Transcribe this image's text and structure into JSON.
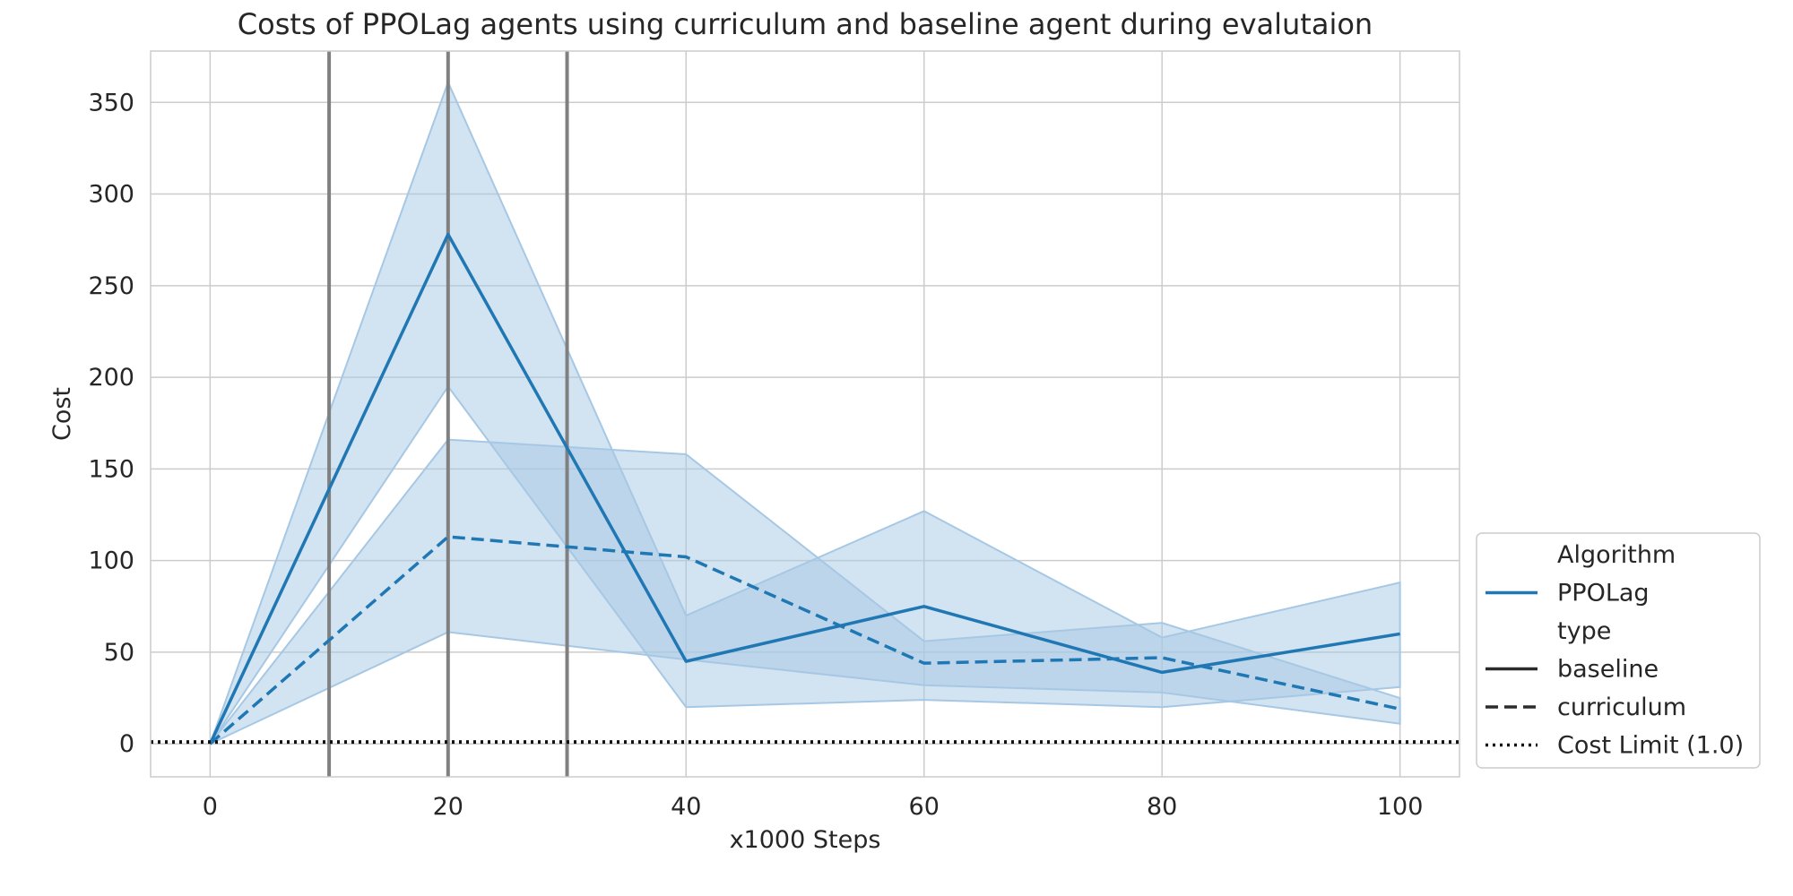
{
  "chart_data": {
    "type": "line",
    "title": "Costs of PPOLag agents using curriculum and baseline agent during evalutaion",
    "xlabel": "x1000 Steps",
    "ylabel": "Cost",
    "xlim": [
      -5,
      105
    ],
    "ylim": [
      -18,
      378
    ],
    "xticks": [
      0,
      20,
      40,
      60,
      80,
      100
    ],
    "yticks": [
      0,
      50,
      100,
      150,
      200,
      250,
      300,
      350
    ],
    "grid": true,
    "color": "#1f77b4",
    "band_color": "#a6c8e4",
    "x": [
      0,
      20,
      40,
      60,
      80,
      100
    ],
    "series": [
      {
        "name": "baseline",
        "style": "solid",
        "values": [
          0,
          278,
          45,
          75,
          39,
          60
        ],
        "lower": [
          0,
          195,
          20,
          24,
          20,
          31
        ],
        "upper": [
          0,
          361,
          70,
          127,
          58,
          88
        ]
      },
      {
        "name": "curriculum",
        "style": "dashed",
        "values": [
          0,
          113,
          102,
          44,
          47,
          19
        ],
        "lower": [
          0,
          61,
          46,
          32,
          28,
          11
        ],
        "upper": [
          0,
          166,
          158,
          56,
          66,
          25
        ]
      }
    ],
    "vlines": [
      10,
      20,
      30
    ],
    "vline_color": "#808080",
    "cost_limit": 1.0,
    "legend": {
      "placement": "right",
      "items": [
        {
          "label": "Algorithm",
          "kind": "header"
        },
        {
          "label": "PPOLag",
          "kind": "line",
          "style": "solid",
          "color": "#1f77b4"
        },
        {
          "label": "type",
          "kind": "header"
        },
        {
          "label": "baseline",
          "kind": "line",
          "style": "solid",
          "color": "#2b2b2b"
        },
        {
          "label": "curriculum",
          "kind": "line",
          "style": "dashed",
          "color": "#2b2b2b"
        },
        {
          "label": "Cost Limit (1.0)",
          "kind": "line",
          "style": "dotted",
          "color": "#111111"
        }
      ]
    }
  }
}
